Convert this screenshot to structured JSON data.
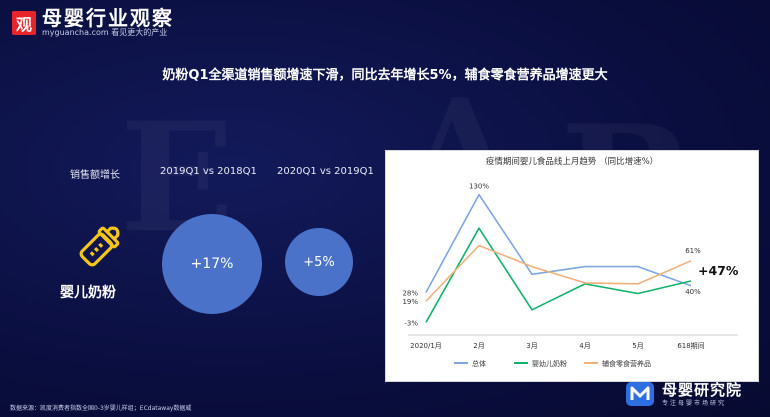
{
  "logo": {
    "mark": "观",
    "name": "母婴行业观察",
    "site": "myguancha.com",
    "slogan": "看见更大的产业"
  },
  "title": "奶粉Q1全渠道销售额增速下滑，同比去年增长5%，辅食零食营养品增速更大",
  "table": {
    "col_label": "销售额增长",
    "col_2019": "2019Q1 vs 2018Q1",
    "col_2020": "2020Q1 vs 2019Q1",
    "product": "婴儿奶粉",
    "val_2019": "+17%",
    "val_2020": "+5%",
    "product_icon": "baby-bottle-icon",
    "icon_color": "#f5c518",
    "bubble_color": "#4a72c9"
  },
  "chart_data": {
    "type": "line",
    "title": "疫情期间婴儿食品线上月趋势 （同比增速%）",
    "categories": [
      "2020/1月",
      "2月",
      "3月",
      "4月",
      "5月",
      "618期间"
    ],
    "series": [
      {
        "name": "总体",
        "color": "#7ea6e0",
        "values": [
          28,
          130,
          47,
          55,
          55,
          35
        ]
      },
      {
        "name": "婴幼儿奶粉",
        "color": "#10b36b",
        "values": [
          -3,
          95,
          10,
          37,
          27,
          40
        ]
      },
      {
        "name": "辅食零食营养品",
        "color": "#f1b07a",
        "values": [
          19,
          77,
          55,
          38,
          37,
          61
        ]
      }
    ],
    "point_labels": [
      {
        "series": 0,
        "index": 0,
        "text": "28%"
      },
      {
        "series": 0,
        "index": 1,
        "text": "130%"
      },
      {
        "series": 1,
        "index": 0,
        "text": "-3%"
      },
      {
        "series": 2,
        "index": 0,
        "text": "19%"
      },
      {
        "series": 2,
        "index": 5,
        "text": "61%"
      },
      {
        "series": 1,
        "index": 5,
        "text": "40%"
      }
    ],
    "callout": "+47%",
    "ylim": [
      -10,
      140
    ],
    "grid": false,
    "legend_position": "bottom"
  },
  "footer": "数据来源：凯度消费者指数全国0-3岁婴儿样组；ECdataway数据威",
  "brand": {
    "name": "母婴研究院",
    "sub": "专注母婴市场研究"
  }
}
